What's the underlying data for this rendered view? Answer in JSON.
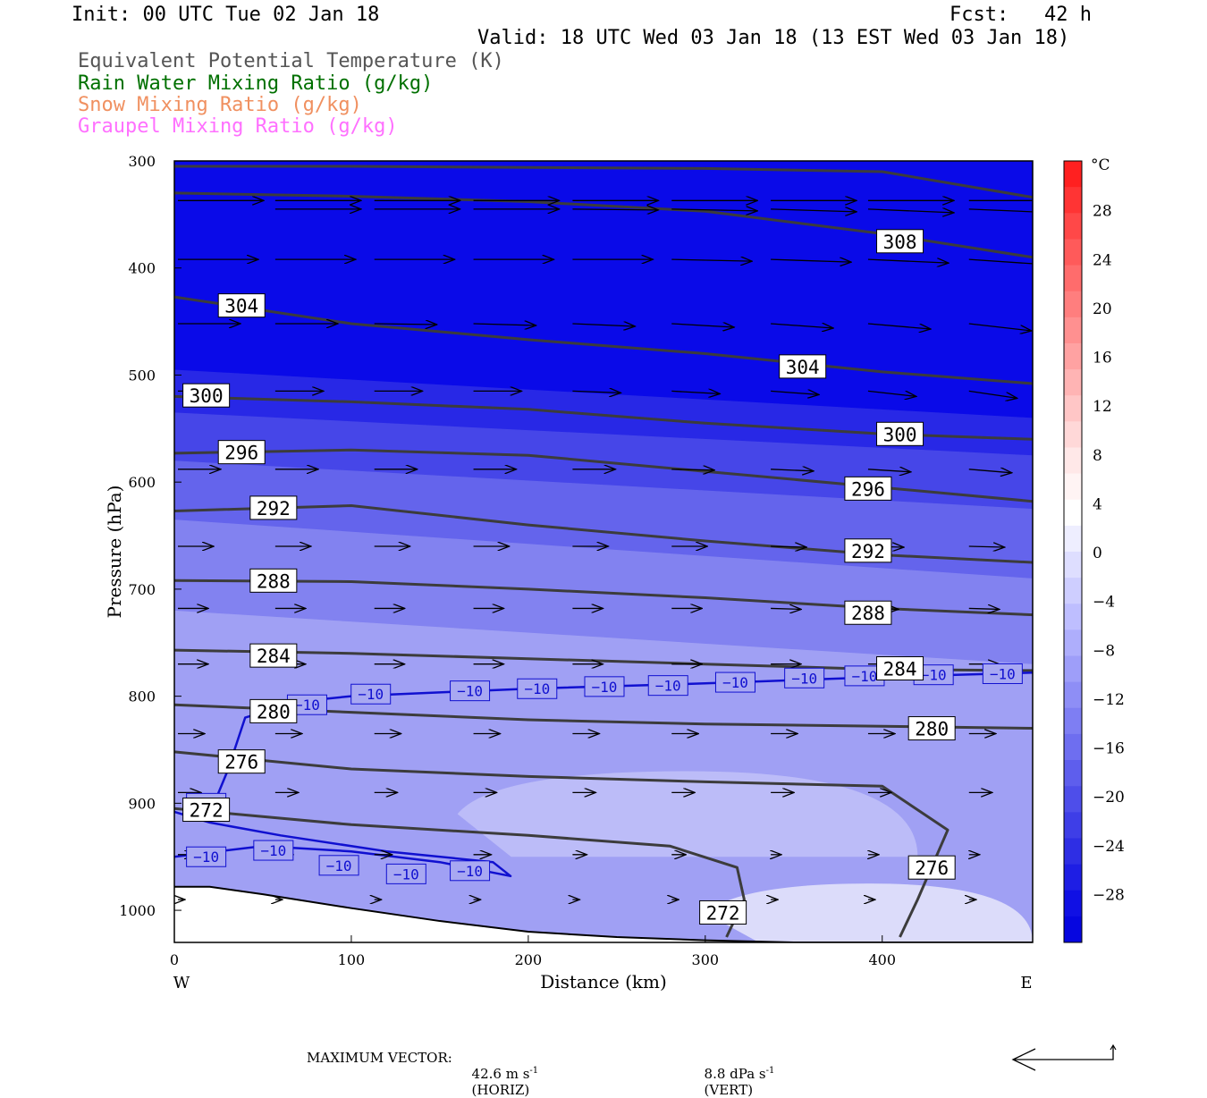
{
  "header": {
    "init": "Init: 00 UTC Tue 02 Jan 18",
    "fcst": "Fcst:   42 h",
    "valid": "Valid: 18 UTC Wed 03 Jan 18 (13 EST Wed 03 Jan 18)"
  },
  "legend": [
    {
      "text": "Equivalent Potential Temperature (K)",
      "color": "#555555"
    },
    {
      "text": "Rain Water Mixing Ratio (g/kg)",
      "color": "#007000"
    },
    {
      "text": "Snow Mixing Ratio (g/kg)",
      "color": "#f09060"
    },
    {
      "text": "Graupel Mixing Ratio (g/kg)",
      "color": "#ff70ff"
    }
  ],
  "footer": {
    "max_vector_label": "MAXIMUM VECTOR:",
    "horiz": "42.6 m s",
    "horiz_unit": "(HORIZ)",
    "vert": "8.8 dPa s",
    "vert_unit": "(VERT)",
    "exponent": "-1"
  },
  "chart_data": {
    "type": "heatmap",
    "xlabel": "Distance (km)",
    "ylabel": "Pressure (hPa)",
    "xlim": [
      0,
      485
    ],
    "ylim": [
      1030,
      300
    ],
    "xticks": [
      0,
      100,
      200,
      300,
      400
    ],
    "yticks": [
      300,
      400,
      500,
      600,
      700,
      800,
      900,
      1000
    ],
    "x_end_labels": {
      "left": "W",
      "right": "E"
    },
    "colorbar": {
      "unit": "°C",
      "tick_labels": [
        "28",
        "24",
        "20",
        "16",
        "12",
        "8",
        "4",
        "0",
        "−4",
        "−8",
        "−12",
        "−16",
        "−20",
        "−24",
        "−28"
      ],
      "tick_values": [
        28,
        24,
        20,
        16,
        12,
        8,
        4,
        0,
        -4,
        -8,
        -12,
        -16,
        -20,
        -24,
        -28
      ],
      "levels": [
        32,
        30,
        28,
        26,
        24,
        22,
        20,
        18,
        16,
        14,
        12,
        10,
        8,
        6,
        4,
        2,
        0,
        -2,
        -4,
        -6,
        -8,
        -10,
        -12,
        -14,
        -16,
        -18,
        -20,
        -22,
        -24,
        -26,
        -28,
        -30,
        -32
      ],
      "colors": [
        "#ff2020",
        "#ff3434",
        "#ff4848",
        "#ff5a5a",
        "#ff6c6c",
        "#ff7e7e",
        "#ff9090",
        "#ffa2a2",
        "#ffb4b4",
        "#ffc6c6",
        "#ffd8d8",
        "#ffe8e8",
        "#fff4f4",
        "#ffffff",
        "#eeeeff",
        "#dedeff",
        "#ceceff",
        "#bebeff",
        "#aeaefc",
        "#9e9ef9",
        "#8e8ef6",
        "#7e7ef3",
        "#6e6ef0",
        "#5e5eed",
        "#4e4eea",
        "#3e3ee7",
        "#2e2ee4",
        "#1e1ee4",
        "#1010e4",
        "#0606e0"
      ]
    },
    "temperature_bands": [
      {
        "label": "<-28",
        "color": "#0a0ae8",
        "x": [
          0,
          485
        ],
        "p_bottom": [
          495,
          540
        ]
      },
      {
        "label": "-28..-24",
        "color": "#2828e6",
        "x": [
          0,
          485
        ],
        "p_bottom": [
          535,
          575
        ]
      },
      {
        "label": "-24..-20",
        "color": "#4646e8",
        "x": [
          0,
          485
        ],
        "p_bottom": [
          580,
          625
        ]
      },
      {
        "label": "-20..-16",
        "color": "#6464ec",
        "x": [
          0,
          485
        ],
        "p_bottom": [
          635,
          690
        ]
      },
      {
        "label": "-16..-12",
        "color": "#8282f0",
        "x": [
          0,
          485
        ],
        "p_bottom": [
          720,
          770
        ]
      },
      {
        "label": "-12..-8",
        "color": "#a0a0f4",
        "x": [
          0,
          485
        ],
        "p_bottom": [
          1030,
          1030
        ]
      },
      {
        "label": "-8..-4",
        "color": "#bcbcf8",
        "x": [
          160,
          420
        ],
        "p_top": 870,
        "p_bottom": 950
      },
      {
        "label": "-4..0",
        "color": "#dcdcfa",
        "x": [
          300,
          485
        ],
        "p_top": 975,
        "p_bottom": 1030
      }
    ],
    "theta_e_contours": [
      {
        "label": "308",
        "x": [
          0,
          100,
          200,
          300,
          400,
          485
        ],
        "p": [
          330,
          333,
          338,
          347,
          368,
          390
        ]
      },
      {
        "label": "308",
        "x": [
          0,
          100,
          200,
          300,
          400,
          485
        ],
        "p": [
          305,
          305,
          306,
          307,
          310,
          334
        ]
      },
      {
        "label": "304",
        "x": [
          0,
          100,
          200,
          300,
          400,
          485
        ],
        "p": [
          427,
          452,
          467,
          480,
          497,
          508
        ]
      },
      {
        "label": "300",
        "x": [
          0,
          100,
          200,
          300,
          400,
          485
        ],
        "p": [
          520,
          525,
          532,
          545,
          555,
          560
        ]
      },
      {
        "label": "296",
        "x": [
          0,
          100,
          200,
          300,
          400,
          485
        ],
        "p": [
          573,
          570,
          575,
          590,
          605,
          618
        ]
      },
      {
        "label": "292",
        "x": [
          0,
          100,
          200,
          300,
          400,
          485
        ],
        "p": [
          627,
          622,
          640,
          655,
          668,
          675
        ]
      },
      {
        "label": "288",
        "x": [
          0,
          100,
          200,
          300,
          400,
          485
        ],
        "p": [
          692,
          693,
          700,
          708,
          718,
          724
        ]
      },
      {
        "label": "284",
        "x": [
          0,
          100,
          200,
          300,
          400,
          485
        ],
        "p": [
          757,
          760,
          765,
          770,
          775,
          776
        ]
      },
      {
        "label": "280",
        "x": [
          0,
          100,
          200,
          300,
          400,
          485
        ],
        "p": [
          808,
          815,
          822,
          826,
          828,
          830
        ]
      },
      {
        "label": "276",
        "x": [
          0,
          100,
          200,
          300,
          400,
          437,
          420,
          410
        ],
        "p": [
          852,
          868,
          875,
          880,
          884,
          925,
          990,
          1025
        ]
      },
      {
        "label": "272",
        "x": [
          0,
          100,
          200,
          280,
          318,
          322,
          312
        ],
        "p": [
          905,
          920,
          930,
          940,
          960,
          990,
          1025
        ]
      }
    ],
    "theta_e_labels": [
      {
        "text": "308",
        "x": 410,
        "p": 375
      },
      {
        "text": "304",
        "x": 38,
        "p": 435
      },
      {
        "text": "304",
        "x": 355,
        "p": 492
      },
      {
        "text": "300",
        "x": 18,
        "p": 519
      },
      {
        "text": "300",
        "x": 410,
        "p": 555
      },
      {
        "text": "296",
        "x": 38,
        "p": 572
      },
      {
        "text": "296",
        "x": 392,
        "p": 606
      },
      {
        "text": "292",
        "x": 56,
        "p": 624
      },
      {
        "text": "292",
        "x": 392,
        "p": 664
      },
      {
        "text": "288",
        "x": 56,
        "p": 692
      },
      {
        "text": "288",
        "x": 392,
        "p": 722
      },
      {
        "text": "284",
        "x": 56,
        "p": 762
      },
      {
        "text": "284",
        "x": 410,
        "p": 774
      },
      {
        "text": "280",
        "x": 56,
        "p": 814
      },
      {
        "text": "280",
        "x": 428,
        "p": 830
      },
      {
        "text": "276",
        "x": 38,
        "p": 861
      },
      {
        "text": "276",
        "x": 428,
        "p": 960
      },
      {
        "text": "272",
        "x": 18,
        "p": 906
      },
      {
        "text": "272",
        "x": 310,
        "p": 1002
      }
    ],
    "minus10_isotherm_upper": {
      "x": [
        20,
        30,
        40,
        70,
        100,
        200,
        300,
        400,
        485
      ],
      "p": [
        910,
        870,
        820,
        805,
        800,
        793,
        788,
        782,
        778
      ]
    },
    "minus10_isotherm_lower": {
      "x": [
        0,
        50,
        100,
        150,
        190,
        180,
        120,
        60,
        20,
        0
      ],
      "p": [
        950,
        940,
        945,
        955,
        968,
        955,
        945,
        930,
        918,
        908
      ]
    },
    "minus10_labels": [
      {
        "text": "−10",
        "x": 75,
        "p": 808
      },
      {
        "text": "−10",
        "x": 111,
        "p": 798
      },
      {
        "text": "−10",
        "x": 167,
        "p": 795
      },
      {
        "text": "−10",
        "x": 205,
        "p": 793
      },
      {
        "text": "−10",
        "x": 243,
        "p": 791
      },
      {
        "text": "−10",
        "x": 279,
        "p": 790
      },
      {
        "text": "−10",
        "x": 317,
        "p": 787
      },
      {
        "text": "−10",
        "x": 356,
        "p": 783
      },
      {
        "text": "−10",
        "x": 390,
        "p": 781
      },
      {
        "text": "−10",
        "x": 429,
        "p": 780
      },
      {
        "text": "−10",
        "x": 468,
        "p": 779
      },
      {
        "text": "−10",
        "x": 18,
        "p": 900
      },
      {
        "text": "−10",
        "x": 18,
        "p": 950
      },
      {
        "text": "−10",
        "x": 56,
        "p": 944
      },
      {
        "text": "−10",
        "x": 93,
        "p": 958
      },
      {
        "text": "−10",
        "x": 131,
        "p": 966
      },
      {
        "text": "−10",
        "x": 167,
        "p": 963
      }
    ],
    "terrain": {
      "x": [
        0,
        20,
        50,
        100,
        150,
        200,
        250,
        300,
        350,
        400,
        485
      ],
      "p": [
        978,
        978,
        985,
        998,
        1010,
        1020,
        1025,
        1028,
        1030,
        1030,
        1030
      ]
    },
    "wind_vectors": {
      "x_positions": [
        0,
        55,
        111,
        167,
        223,
        279,
        335,
        390,
        447
      ],
      "levels": [
        {
          "p": 337,
          "dx": [
            48,
            48,
            48,
            48,
            48,
            48,
            48,
            48,
            48
          ],
          "dy": [
            0,
            0,
            0,
            0,
            0,
            0,
            0,
            0,
            0
          ]
        },
        {
          "p": 345,
          "dx": [
            0,
            48,
            48,
            48,
            48,
            48,
            48,
            48,
            48
          ],
          "dy": [
            0,
            0,
            0,
            0,
            1,
            2,
            3,
            4,
            4
          ]
        },
        {
          "p": 392,
          "dx": [
            45,
            45,
            45,
            45,
            45,
            45,
            45,
            45,
            45
          ],
          "dy": [
            0,
            0,
            0,
            0,
            0,
            2,
            3,
            4,
            6
          ]
        },
        {
          "p": 452,
          "dx": [
            35,
            35,
            35,
            35,
            35,
            35,
            35,
            35,
            35
          ],
          "dy": [
            0,
            0,
            1,
            2,
            3,
            4,
            5,
            6,
            8
          ]
        },
        {
          "p": 515,
          "dx": [
            27,
            27,
            27,
            27,
            27,
            27,
            27,
            27,
            27
          ],
          "dy": [
            0,
            0,
            0,
            0,
            2,
            3,
            4,
            6,
            8
          ]
        },
        {
          "p": 588,
          "dx": [
            24,
            24,
            24,
            24,
            24,
            24,
            24,
            24,
            24
          ],
          "dy": [
            0,
            0,
            0,
            0,
            0,
            1,
            2,
            3,
            4
          ]
        },
        {
          "p": 660,
          "dx": [
            20,
            20,
            20,
            20,
            20,
            20,
            20,
            20,
            20
          ],
          "dy": [
            0,
            0,
            0,
            0,
            0,
            0,
            1,
            1,
            1
          ]
        },
        {
          "p": 718,
          "dx": [
            17,
            17,
            17,
            17,
            17,
            17,
            17,
            17,
            17
          ],
          "dy": [
            0,
            0,
            0,
            0,
            0,
            0,
            1,
            1,
            1
          ]
        },
        {
          "p": 770,
          "dx": [
            17,
            17,
            17,
            17,
            17,
            17,
            17,
            17,
            17
          ],
          "dy": [
            0,
            0,
            0,
            0,
            0,
            0,
            0,
            0,
            0
          ]
        },
        {
          "p": 835,
          "dx": [
            15,
            15,
            15,
            15,
            15,
            15,
            15,
            15,
            15
          ],
          "dy": [
            0,
            0,
            0,
            0,
            0,
            0,
            0,
            0,
            0
          ]
        },
        {
          "p": 890,
          "dx": [
            13,
            13,
            13,
            13,
            13,
            13,
            13,
            13,
            13
          ],
          "dy": [
            0,
            0,
            0,
            0,
            0,
            0,
            0,
            0,
            0
          ]
        },
        {
          "p": 948,
          "dx": [
            10,
            10,
            10,
            10,
            8,
            8,
            6,
            6,
            6
          ],
          "dy": [
            0,
            0,
            0,
            0,
            0,
            0,
            0,
            0,
            0
          ]
        },
        {
          "p": 990,
          "dx": [
            4,
            4,
            4,
            4,
            4,
            4,
            4,
            4,
            4
          ],
          "dy": [
            0,
            0,
            0,
            0,
            0,
            0,
            0,
            0,
            0
          ]
        }
      ]
    }
  }
}
